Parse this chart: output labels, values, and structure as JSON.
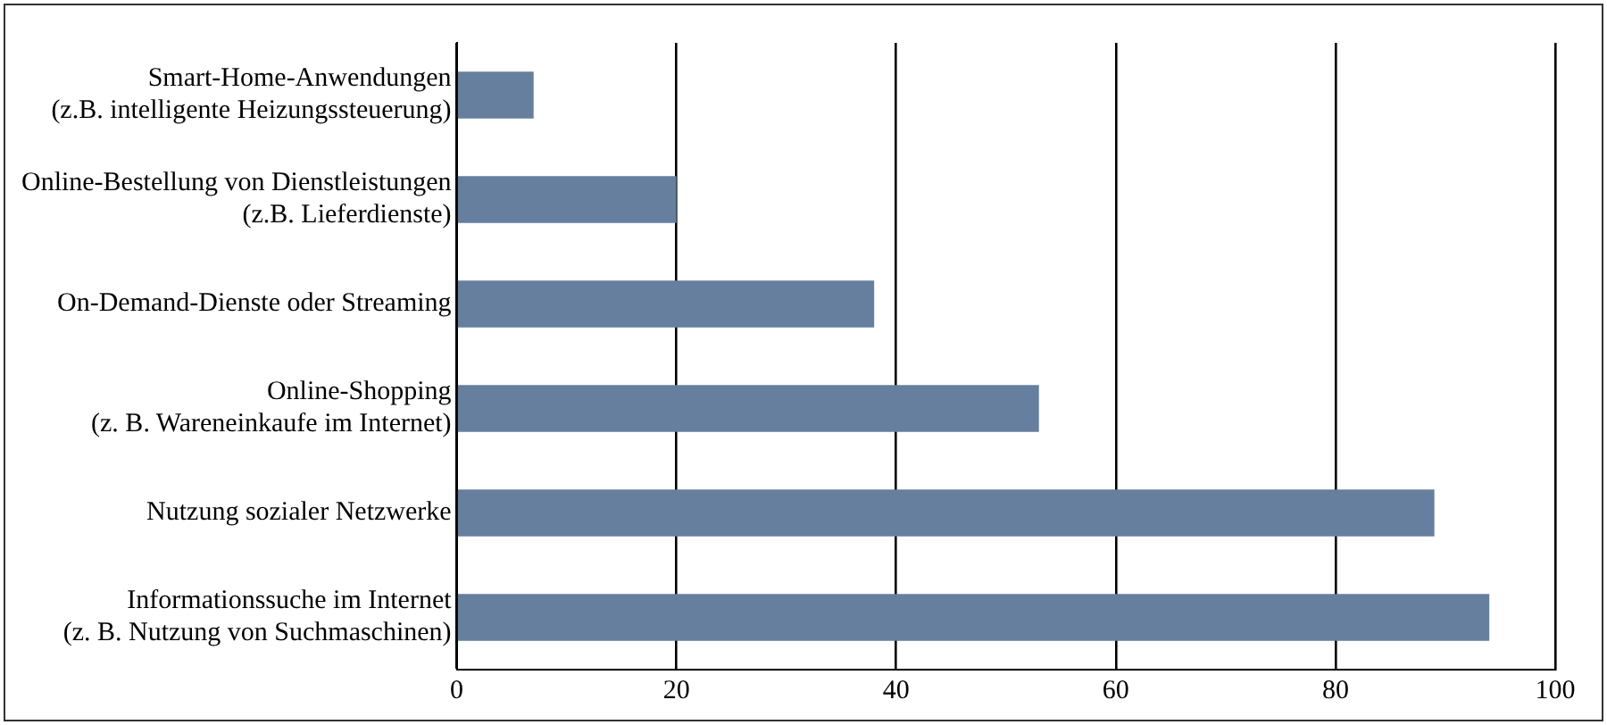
{
  "chart_data": {
    "type": "bar",
    "orientation": "horizontal",
    "categories": [
      "Smart-Home-Anwendungen\n(z.B. intelligente Heizungssteuerung)",
      "Online-Bestellung von Dienstleistungen\n(z.B. Lieferdienste)",
      "On-Demand-Dienste oder Streaming",
      "Online-Shopping\n(z. B. Wareneinkaufe im Internet)",
      "Nutzung sozialer Netzwerke",
      "Informationssuche im Internet\n(z. B. Nutzung von Suchmaschinen)"
    ],
    "values": [
      7,
      20,
      38,
      53,
      89,
      94
    ],
    "color": "#677f9e",
    "xlim": [
      0,
      100
    ],
    "xticks": [
      0,
      20,
      40,
      60,
      80,
      100
    ],
    "grid": "x",
    "legend": false
  }
}
